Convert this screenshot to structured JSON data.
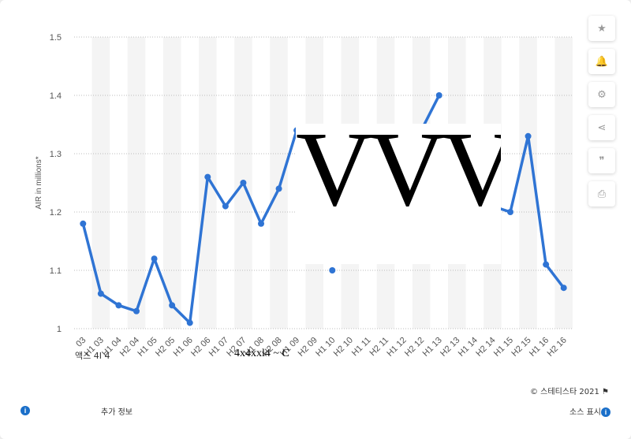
{
  "chart_data": {
    "type": "line",
    "ylabel": "AIR in millions*",
    "ylim": [
      1.0,
      1.5
    ],
    "yticks": [
      1,
      1.1,
      1.2,
      1.3,
      1.4,
      1.5
    ],
    "ytick_labels": [
      "1",
      "1.1",
      "1.2",
      "1.3",
      "1.4",
      "1.5"
    ],
    "grid": true,
    "color": "#2f74d4",
    "categories": [
      "H2 03",
      "H1 03",
      "H1 04",
      "H2 04",
      "H1 05",
      "H2 05",
      "H1 06",
      "H2 06",
      "H1 07",
      "H2 07",
      "H1 08",
      "H2 08",
      "H1 09",
      "H2 09",
      "H1 10",
      "H2 10",
      "H1 11",
      "H2 11",
      "H1 12",
      "H2 12",
      "H1 13",
      "H2 13",
      "H1 14",
      "H2 14",
      "H1 15",
      "H2 15",
      "H1 16",
      "H2 16"
    ],
    "xtick_labels": [
      "03",
      "H1 03",
      "H1 04",
      "H2 04",
      "H1 05",
      "H2 05",
      "H1 06",
      "H2 06",
      "H1 07",
      "H2 07",
      "H1 08",
      "H2 08",
      "H1 09",
      "H2 09",
      "H1 10",
      "H2 10",
      "H1 11",
      "H2 11",
      "H1 12",
      "H2 12",
      "H1 13",
      "H2 13",
      "H1 14",
      "H2 14",
      "H1 15",
      "H2 15",
      "H1 16",
      "H2 16"
    ],
    "values": [
      1.18,
      1.06,
      1.04,
      1.03,
      1.12,
      1.04,
      1.01,
      1.26,
      1.21,
      1.25,
      1.18,
      1.24,
      1.34,
      null,
      1.1,
      null,
      null,
      null,
      null,
      1.34,
      1.4,
      null,
      null,
      1.21,
      1.2,
      1.33,
      1.11,
      1.07
    ],
    "segments": [
      [
        0,
        12
      ],
      [
        19,
        20
      ],
      [
        23,
        27
      ]
    ]
  },
  "overlay_text": "VVV",
  "garbled_text_1": "액스 4I 4",
  "garbled_text_2": "4x4xxl4 ~ C",
  "footer": {
    "copyright": "© 스테티스타 2021",
    "more_info": "추가 정보",
    "source": "소스 표시",
    "info_glyph": "i"
  },
  "toolbar": {
    "buttons": [
      {
        "name": "favorite-star-button",
        "icon": "star-icon",
        "glyph": "★"
      },
      {
        "name": "notification-bell-button",
        "icon": "bell-icon",
        "glyph": "🔔"
      },
      {
        "name": "settings-button",
        "icon": "gear-icon",
        "glyph": "⚙"
      },
      {
        "name": "share-button",
        "icon": "share-icon",
        "glyph": "⋖"
      },
      {
        "name": "cite-button",
        "icon": "quote-icon",
        "glyph": "❞"
      },
      {
        "name": "print-button",
        "icon": "print-icon",
        "glyph": "⎙"
      }
    ]
  }
}
